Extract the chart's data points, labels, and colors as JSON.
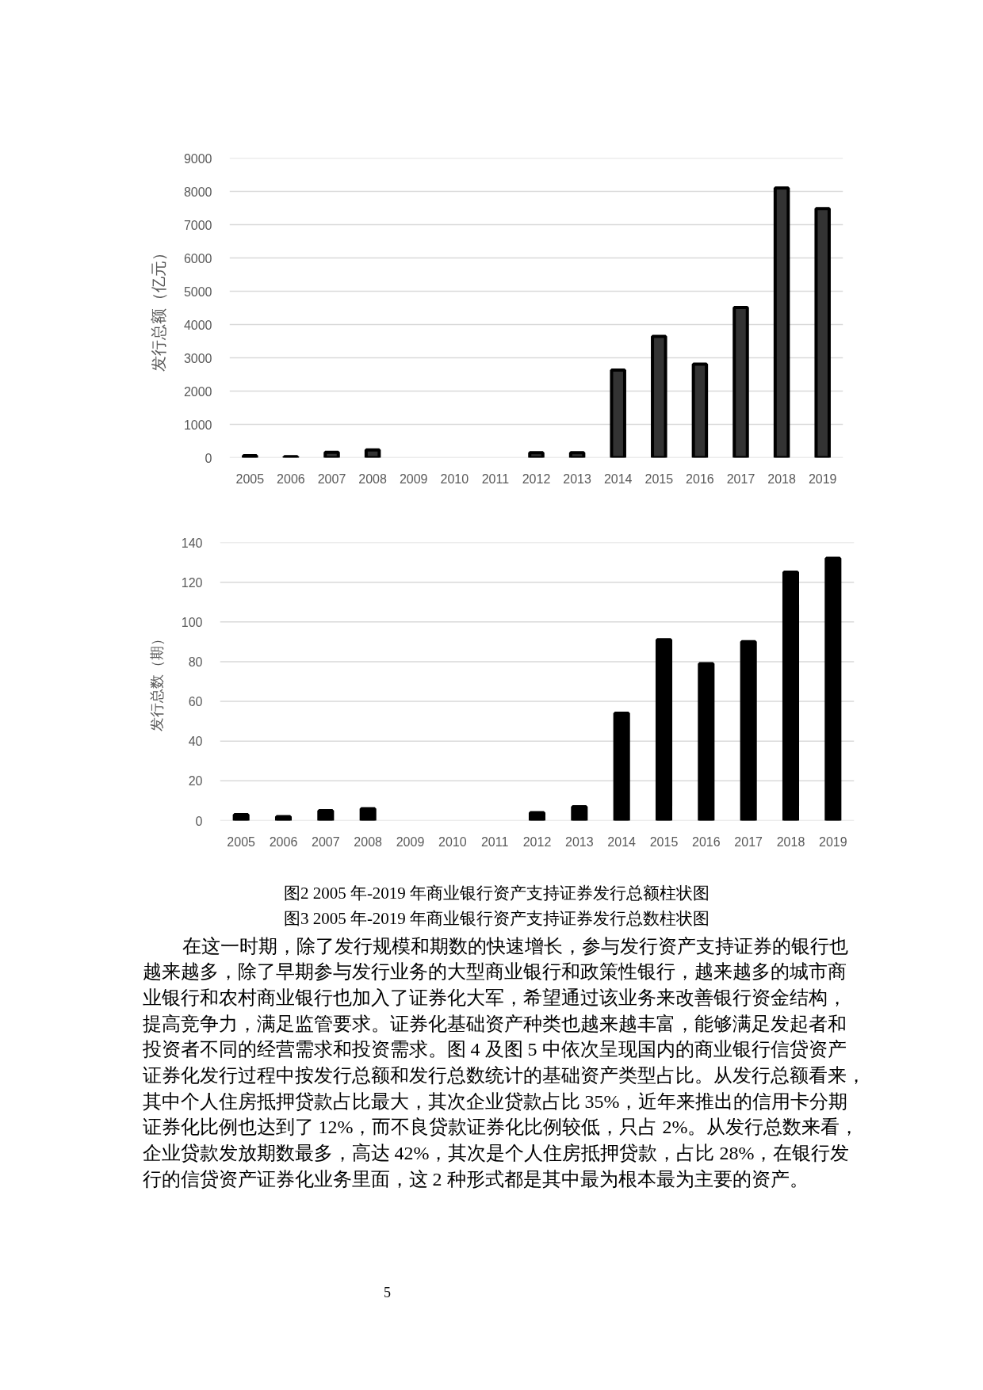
{
  "chart_data": [
    {
      "type": "bar",
      "ylabel": "发行总额（亿元）",
      "categories": [
        "2005",
        "2006",
        "2007",
        "2008",
        "2009",
        "2010",
        "2011",
        "2012",
        "2013",
        "2014",
        "2015",
        "2016",
        "2017",
        "2018",
        "2019"
      ],
      "values": [
        60,
        30,
        160,
        230,
        null,
        null,
        null,
        150,
        150,
        2630,
        3640,
        2810,
        4510,
        8100,
        7480
      ],
      "color": "#333333",
      "ylim": [
        0,
        9000
      ],
      "yticks": [
        0,
        1000,
        2000,
        3000,
        4000,
        5000,
        6000,
        7000,
        8000,
        9000
      ],
      "grid": "y"
    },
    {
      "type": "bar",
      "ylabel": "发行总数（期）",
      "categories": [
        "2005",
        "2006",
        "2007",
        "2008",
        "2009",
        "2010",
        "2011",
        "2012",
        "2013",
        "2014",
        "2015",
        "2016",
        "2017",
        "2018",
        "2019"
      ],
      "values": [
        3,
        2,
        5,
        6,
        null,
        null,
        null,
        4,
        7,
        54,
        91,
        79,
        90,
        125,
        132
      ],
      "color": "#000000",
      "ylim": [
        0,
        140
      ],
      "yticks": [
        0,
        20,
        40,
        60,
        80,
        100,
        120,
        140
      ],
      "grid": "y"
    },
    {
      "type": "other",
      "annotations": [
        "图2 2005 年-2019 年商业银行资产支持证券发行总额柱状图",
        "图3 2005 年-2019 年商业银行资产支持证券发行总数柱状图",
        "在这一时期，除了发行规模和期数的快速增长，参与发行资产支持证券的银行也",
        "越来越多，除了早期参与发行业务的大型商业银行和政策性银行，越来越多的城市商",
        "业银行和农村商业银行也加入了证券化大军，希望通过该业务来改善银行资金结构，",
        "提高竞争力，满足监管要求。证券化基础资产种类也越来越丰富，能够满足发起者和",
        "投资者不同的经营需求和投资需求。图 4 及图 5 中依次呈现国内的商业银行信贷资产",
        "证券化发行过程中按发行总额和发行总数统计的基础资产类型占比。从发行总额看来，",
        "其中个人住房抵押贷款占比最大，其次企业贷款占比 35%，近年来推出的信用卡分期",
        "证券化比例也达到了 12%，而不良贷款证券化比例较低，只占 2%。从发行总数来看，",
        "企业贷款发放期数最多，高达 42%，其次是个人住房抵押贷款，占比 28%，在银行发",
        "行的信贷资产证券化业务里面，这 2 种形式都是其中最为根本最为主要的资产。",
        "5"
      ]
    }
  ]
}
